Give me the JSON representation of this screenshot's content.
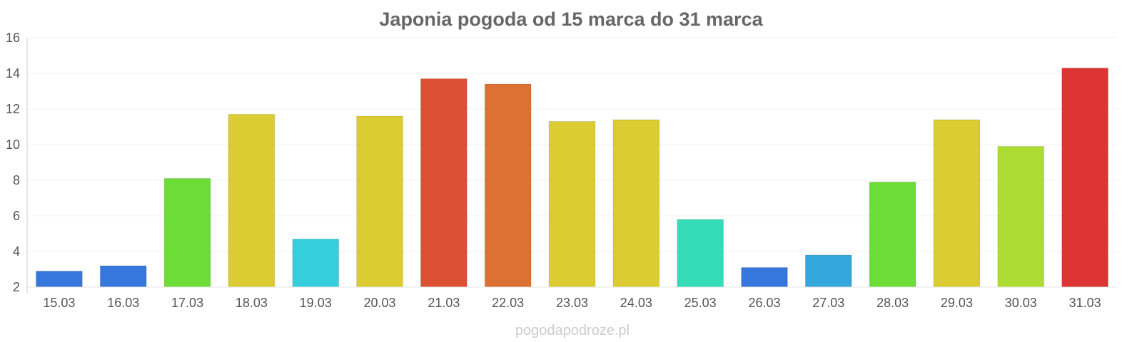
{
  "chart_data": {
    "type": "bar",
    "title": "Japonia pogoda od 15 marca do 31 marca",
    "categories": [
      "15.03",
      "16.03",
      "17.03",
      "18.03",
      "19.03",
      "20.03",
      "21.03",
      "22.03",
      "23.03",
      "24.03",
      "25.03",
      "26.03",
      "27.03",
      "28.03",
      "29.03",
      "30.03",
      "31.03"
    ],
    "values": [
      2.9,
      3.2,
      8.1,
      11.7,
      4.7,
      11.6,
      13.7,
      13.4,
      11.3,
      11.4,
      5.8,
      3.1,
      3.8,
      7.9,
      11.4,
      9.9,
      14.3
    ],
    "colors": [
      "#3577dc",
      "#3577dc",
      "#6cdd37",
      "#dbcc33",
      "#35cfdc",
      "#dbcc33",
      "#dc5134",
      "#dc7134",
      "#dbcc33",
      "#dbcc33",
      "#35dcb8",
      "#3577dc",
      "#35a7dc",
      "#6cdd37",
      "#dbcc33",
      "#addd33",
      "#dc3533"
    ],
    "ylim": [
      2,
      16
    ],
    "yticks": [
      2,
      4,
      6,
      8,
      10,
      12,
      14,
      16
    ],
    "xlabel": "",
    "ylabel": "",
    "grid": true,
    "legend": "none"
  },
  "watermark": "pogodapodroze.pl"
}
